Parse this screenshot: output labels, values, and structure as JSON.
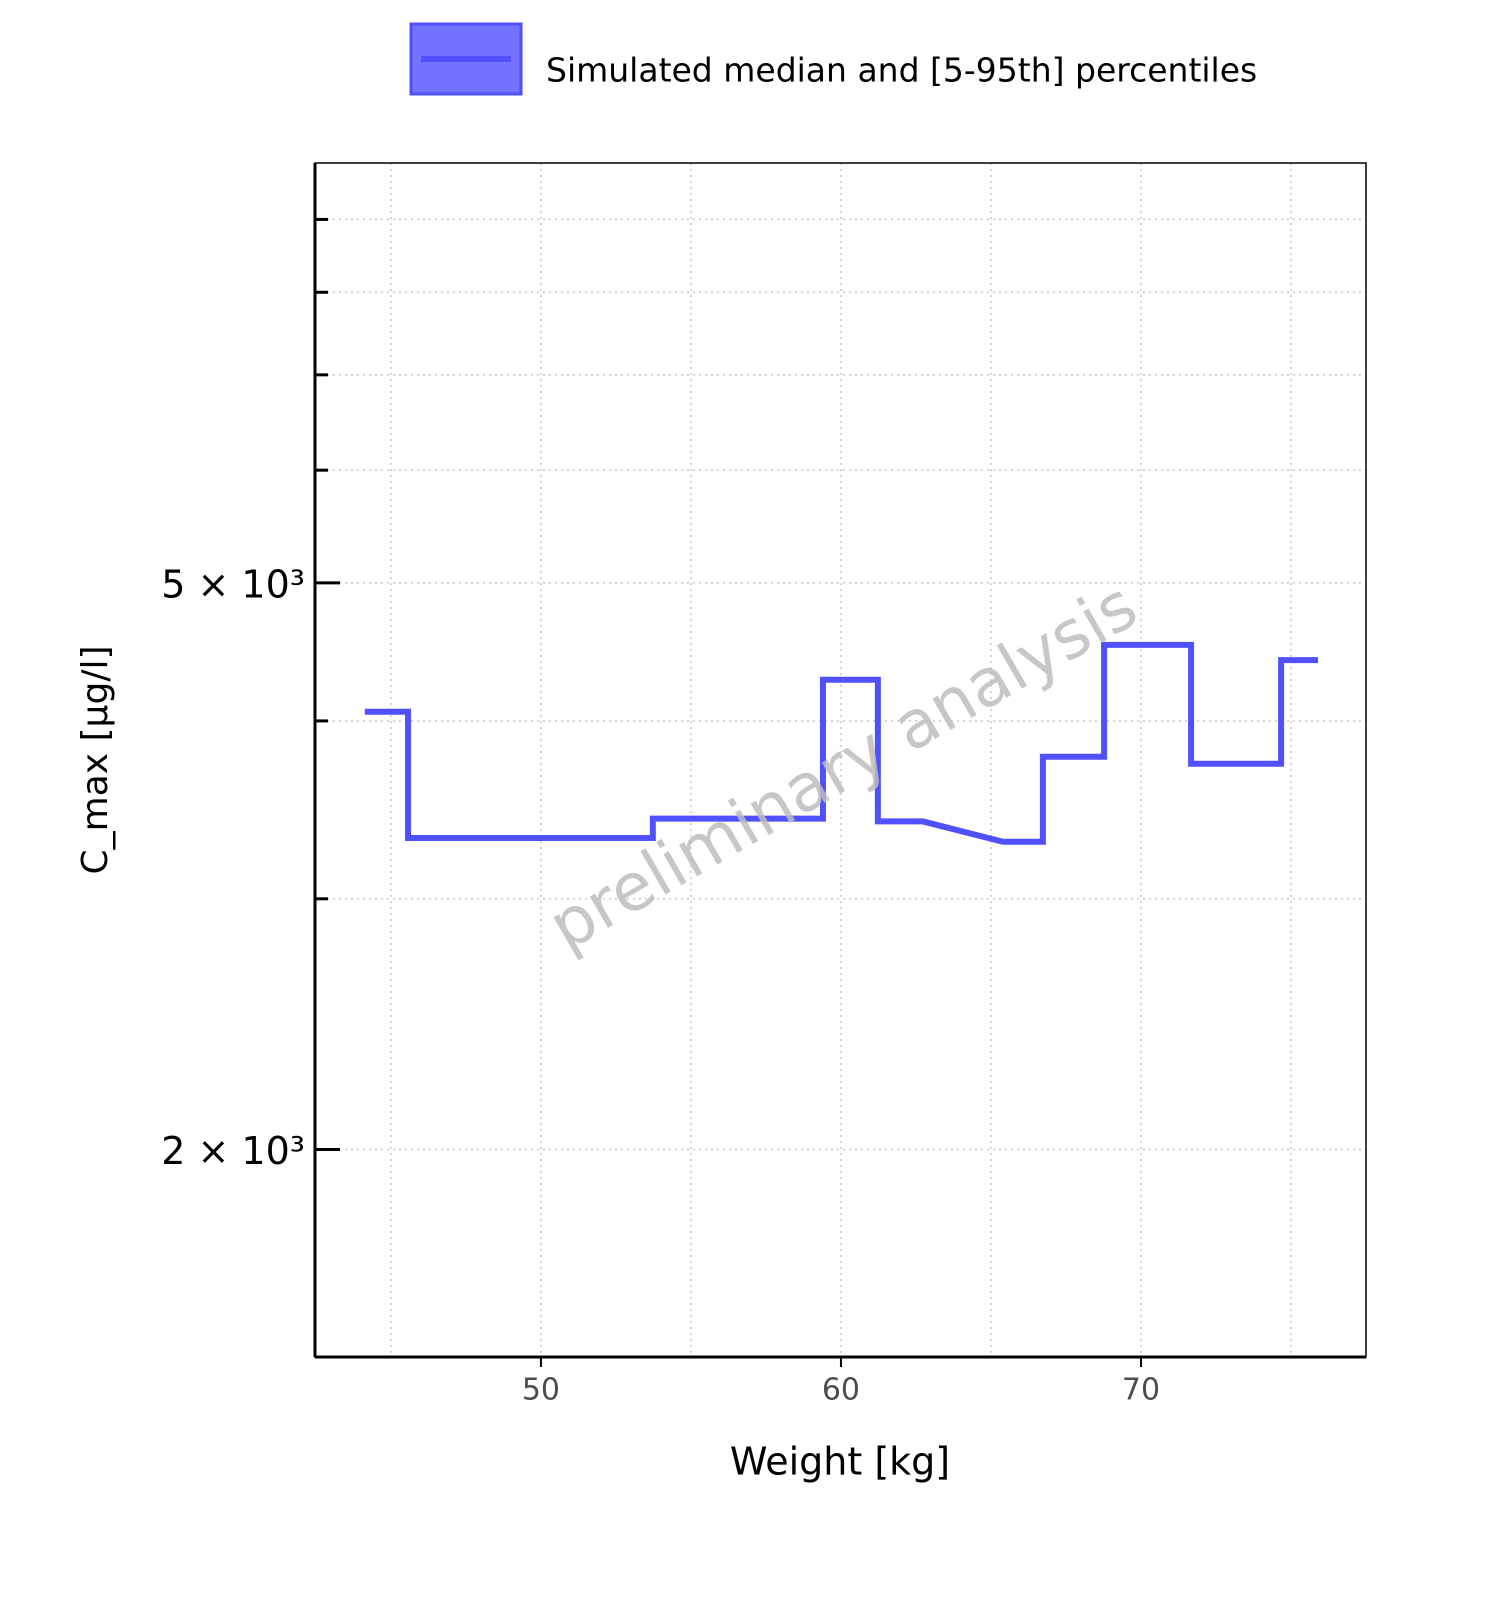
{
  "chart_data": {
    "type": "line",
    "x_label": "Weight [kg]",
    "y_label": "C_max [µg/l]",
    "watermark": "preliminary analysis",
    "x": [
      44.13,
      45.57,
      45.57,
      53.73,
      53.73,
      59.4,
      59.4,
      61.23,
      61.23,
      62.73,
      65.4,
      66.73,
      66.73,
      68.77,
      68.77,
      71.67,
      71.67,
      74.67,
      74.67,
      75.9
    ],
    "series": [
      {
        "name": "Simulated median and [5-95th] percentiles",
        "color": "#5050ff",
        "values": [
          4060,
          4060,
          3310,
          3310,
          3415,
          3415,
          4275,
          4275,
          3400,
          3400,
          3290,
          3290,
          3775,
          3775,
          4523,
          4523,
          3732,
          3732,
          4413,
          4413
        ]
      }
    ],
    "xlim": [
      42.47,
      77.5
    ],
    "xticks": [
      50,
      60,
      70
    ],
    "xminorticks": [
      45,
      55,
      65,
      75
    ],
    "ylim": [
      1430,
      9860
    ],
    "ylog": true,
    "yticks": [
      {
        "value": 2000,
        "label": "2 × 10³"
      },
      {
        "value": 5000,
        "label": "5 × 10³"
      }
    ],
    "yminorticks": [
      3000,
      4000,
      6000,
      7000,
      8000,
      9000
    ],
    "grid": true,
    "legend": "top"
  }
}
